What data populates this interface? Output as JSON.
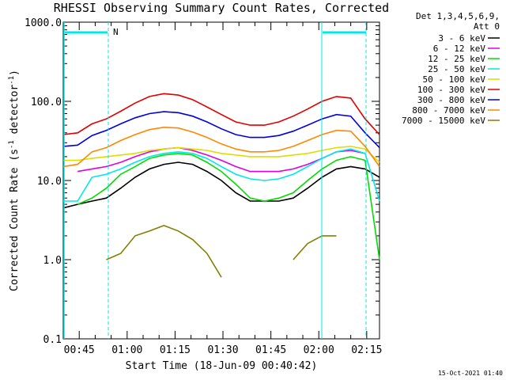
{
  "chart_data": {
    "type": "line",
    "title": "RHESSI Observing Summary Count Rates, Corrected",
    "xlabel": "Start Time (18-Jun-09 00:40:42)",
    "ylabel": "Corrected Count Rate (s^-1 detector^-1)",
    "ylabel_parts": {
      "pre": "Corrected Count Rate (s",
      "sup1": "-1",
      "mid": " detector",
      "sup2": "-1",
      "post": ")"
    },
    "y_scale": "log",
    "ylim": [
      0.1,
      1000.0
    ],
    "y_ticks": [
      "0.1",
      "1.0",
      "10.0",
      "100.0",
      "1000.0"
    ],
    "xlim": [
      "00:40",
      "02:19"
    ],
    "x_ticks": [
      "00:45",
      "01:00",
      "01:15",
      "01:30",
      "01:45",
      "02:00",
      "02:15"
    ],
    "legend_header": [
      "Det 1,3,4,5,6,9,",
      "Att 0"
    ],
    "legend_placement": "right",
    "series": [
      {
        "name": "3 - 6 keV",
        "color": "#000000",
        "values": [
          4.5,
          5.0,
          5.5,
          6.0,
          8.0,
          11.0,
          14.0,
          16.0,
          17.0,
          16.0,
          13.0,
          10.0,
          7.0,
          5.5,
          5.5,
          5.5,
          6.0,
          8.0,
          11.0,
          14.0,
          15.0,
          14.0,
          11.0
        ]
      },
      {
        "name": "6 - 12 keV",
        "color": "#e000e0",
        "values": [
          null,
          13.0,
          14.0,
          15.0,
          17.0,
          20.0,
          23.0,
          25.0,
          26.0,
          24.0,
          21.0,
          18.0,
          15.0,
          13.0,
          13.0,
          13.0,
          14.0,
          16.0,
          19.0,
          23.0,
          24.0,
          22.0,
          null
        ]
      },
      {
        "name": "12 - 25 keV",
        "color": "#00dd00",
        "values": [
          null,
          5.0,
          6.0,
          8.0,
          12.0,
          15.0,
          19.0,
          21.0,
          22.0,
          21.0,
          17.0,
          13.0,
          9.0,
          6.0,
          5.5,
          6.0,
          7.0,
          10.0,
          14.0,
          18.0,
          20.0,
          18.0,
          1.0
        ]
      },
      {
        "name": "25 - 50 keV",
        "color": "#00e8e8",
        "values": [
          5.5,
          5.5,
          11.0,
          12.0,
          14.0,
          17.0,
          20.0,
          22.0,
          23.0,
          22.0,
          19.0,
          15.0,
          12.0,
          10.5,
          10.0,
          10.5,
          12.0,
          15.0,
          19.0,
          23.0,
          25.0,
          22.0,
          5.5
        ]
      },
      {
        "name": "50 - 100 keV",
        "color": "#dddd00",
        "values": [
          18.0,
          18.0,
          19.0,
          20.0,
          21.0,
          22.0,
          24.0,
          25.0,
          26.0,
          25.0,
          24.0,
          22.0,
          21.0,
          20.0,
          20.0,
          20.0,
          21.0,
          22.0,
          24.0,
          26.0,
          27.0,
          25.0,
          17.0
        ]
      },
      {
        "name": "100 - 300 keV",
        "color": "#e00000",
        "values": [
          38.0,
          40.0,
          52.0,
          60.0,
          75.0,
          95.0,
          115.0,
          125.0,
          120.0,
          105.0,
          85.0,
          68.0,
          55.0,
          50.0,
          50.0,
          55.0,
          65.0,
          80.0,
          100.0,
          115.0,
          110.0,
          60.0,
          38.0
        ]
      },
      {
        "name": "300 - 800 keV",
        "color": "#0000e0",
        "values": [
          27.0,
          28.0,
          37.0,
          43.0,
          52.0,
          62.0,
          70.0,
          74.0,
          72.0,
          65.0,
          55.0,
          45.0,
          38.0,
          35.0,
          35.0,
          37.0,
          42.0,
          50.0,
          60.0,
          68.0,
          65.0,
          40.0,
          26.0
        ]
      },
      {
        "name": "800 - 7000 keV",
        "color": "#ff8800",
        "values": [
          15.0,
          16.0,
          23.0,
          26.0,
          32.0,
          38.0,
          44.0,
          47.0,
          46.0,
          41.0,
          35.0,
          29.0,
          25.0,
          23.0,
          23.0,
          24.0,
          27.0,
          32.0,
          38.0,
          43.0,
          42.0,
          27.0,
          15.0
        ]
      },
      {
        "name": "7000 - 15000 keV",
        "color": "#808000",
        "values": [
          null,
          null,
          null,
          1.0,
          1.2,
          2.0,
          2.3,
          2.7,
          2.3,
          1.8,
          1.2,
          0.6,
          null,
          null,
          null,
          null,
          1.0,
          1.6,
          2.0,
          2.0,
          null,
          null,
          null
        ]
      }
    ],
    "annotations": {
      "flag_label": "N",
      "flag_color": "#00e8e8"
    }
  },
  "timestamp": "15-Oct-2021 01:40"
}
